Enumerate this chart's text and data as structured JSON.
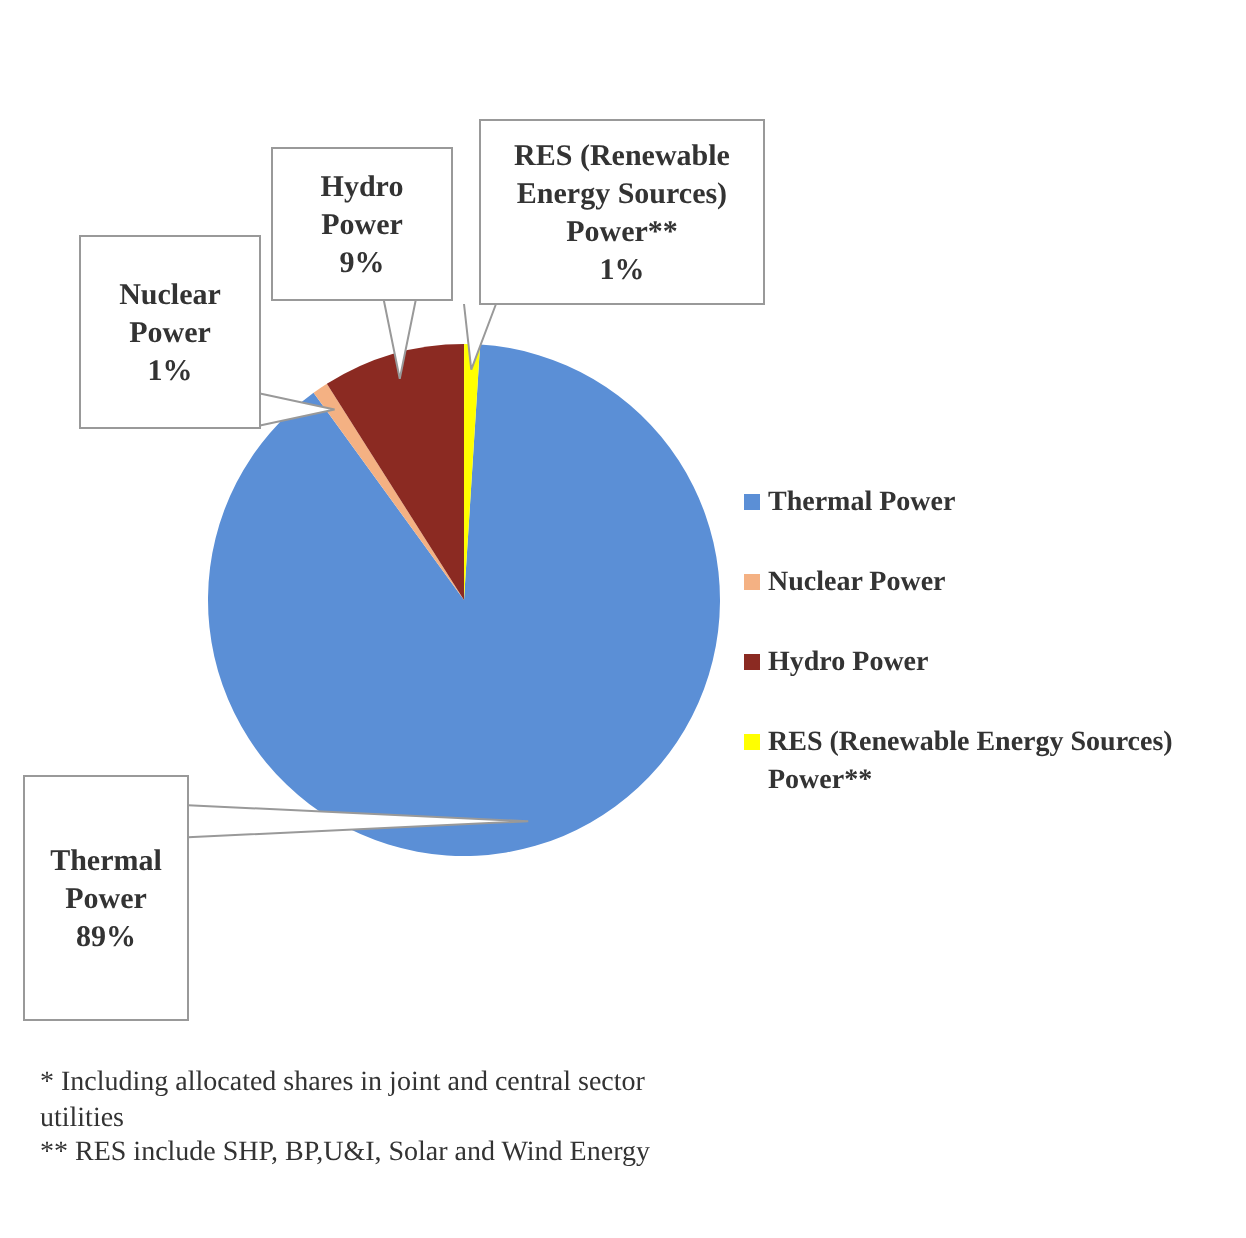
{
  "chart_data": {
    "type": "pie",
    "categories": [
      "Thermal Power",
      "Nuclear Power",
      "Hydro Power",
      "RES (Renewable Energy Sources) Power**"
    ],
    "values": [
      89,
      1,
      9,
      1
    ],
    "colors": [
      "#5b8fd6",
      "#f4b183",
      "#8b2a22",
      "#ffff00"
    ],
    "value_labels": [
      "89%",
      "1%",
      "9%",
      "1%"
    ],
    "legend": "right",
    "annotations": [
      "* Including allocated shares in joint and central sector utilities",
      "** RES include SHP, BP,U&I, Solar and Wind Energy"
    ]
  }
}
